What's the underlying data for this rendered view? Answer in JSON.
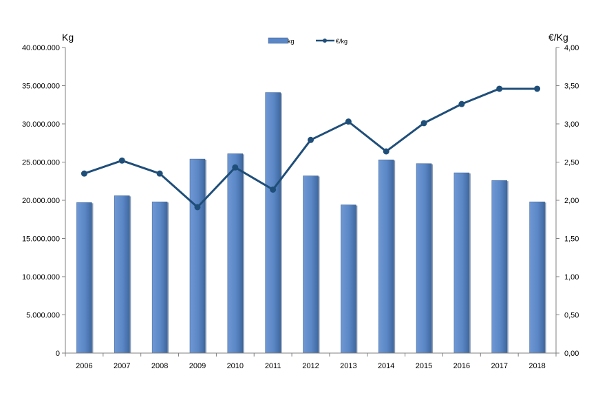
{
  "chart_data": {
    "type": "bar+line",
    "categories": [
      "2006",
      "2007",
      "2008",
      "2009",
      "2010",
      "2011",
      "2012",
      "2013",
      "2014",
      "2015",
      "2016",
      "2017",
      "2018"
    ],
    "series": [
      {
        "name": "kg",
        "type": "bar",
        "axis": "left",
        "color": "#5b87c6",
        "values": [
          19700000,
          20600000,
          19800000,
          25400000,
          26100000,
          34100000,
          23200000,
          19400000,
          25300000,
          24800000,
          23600000,
          22600000,
          19800000
        ]
      },
      {
        "name": "€/kg",
        "type": "line",
        "axis": "right",
        "color": "#1f4e79",
        "values": [
          2.35,
          2.52,
          2.35,
          1.91,
          2.43,
          2.14,
          2.79,
          3.03,
          2.64,
          3.01,
          3.26,
          3.46,
          3.46
        ]
      }
    ],
    "ylabel_left": "Kg",
    "ylabel_right": "€/Kg",
    "ylim_left": [
      0,
      40000000
    ],
    "ylim_right": [
      0,
      4
    ],
    "left_ticks": [
      "0",
      "5.000.000",
      "10.000.000",
      "15.000.000",
      "20.000.000",
      "25.000.000",
      "30.000.000",
      "35.000.000",
      "40.000.000"
    ],
    "right_ticks": [
      "0,00",
      "0,50",
      "1,00",
      "1,50",
      "2,00",
      "2,50",
      "3,00",
      "3,50",
      "4,00"
    ],
    "grid": false,
    "legend_position": "top-center"
  }
}
